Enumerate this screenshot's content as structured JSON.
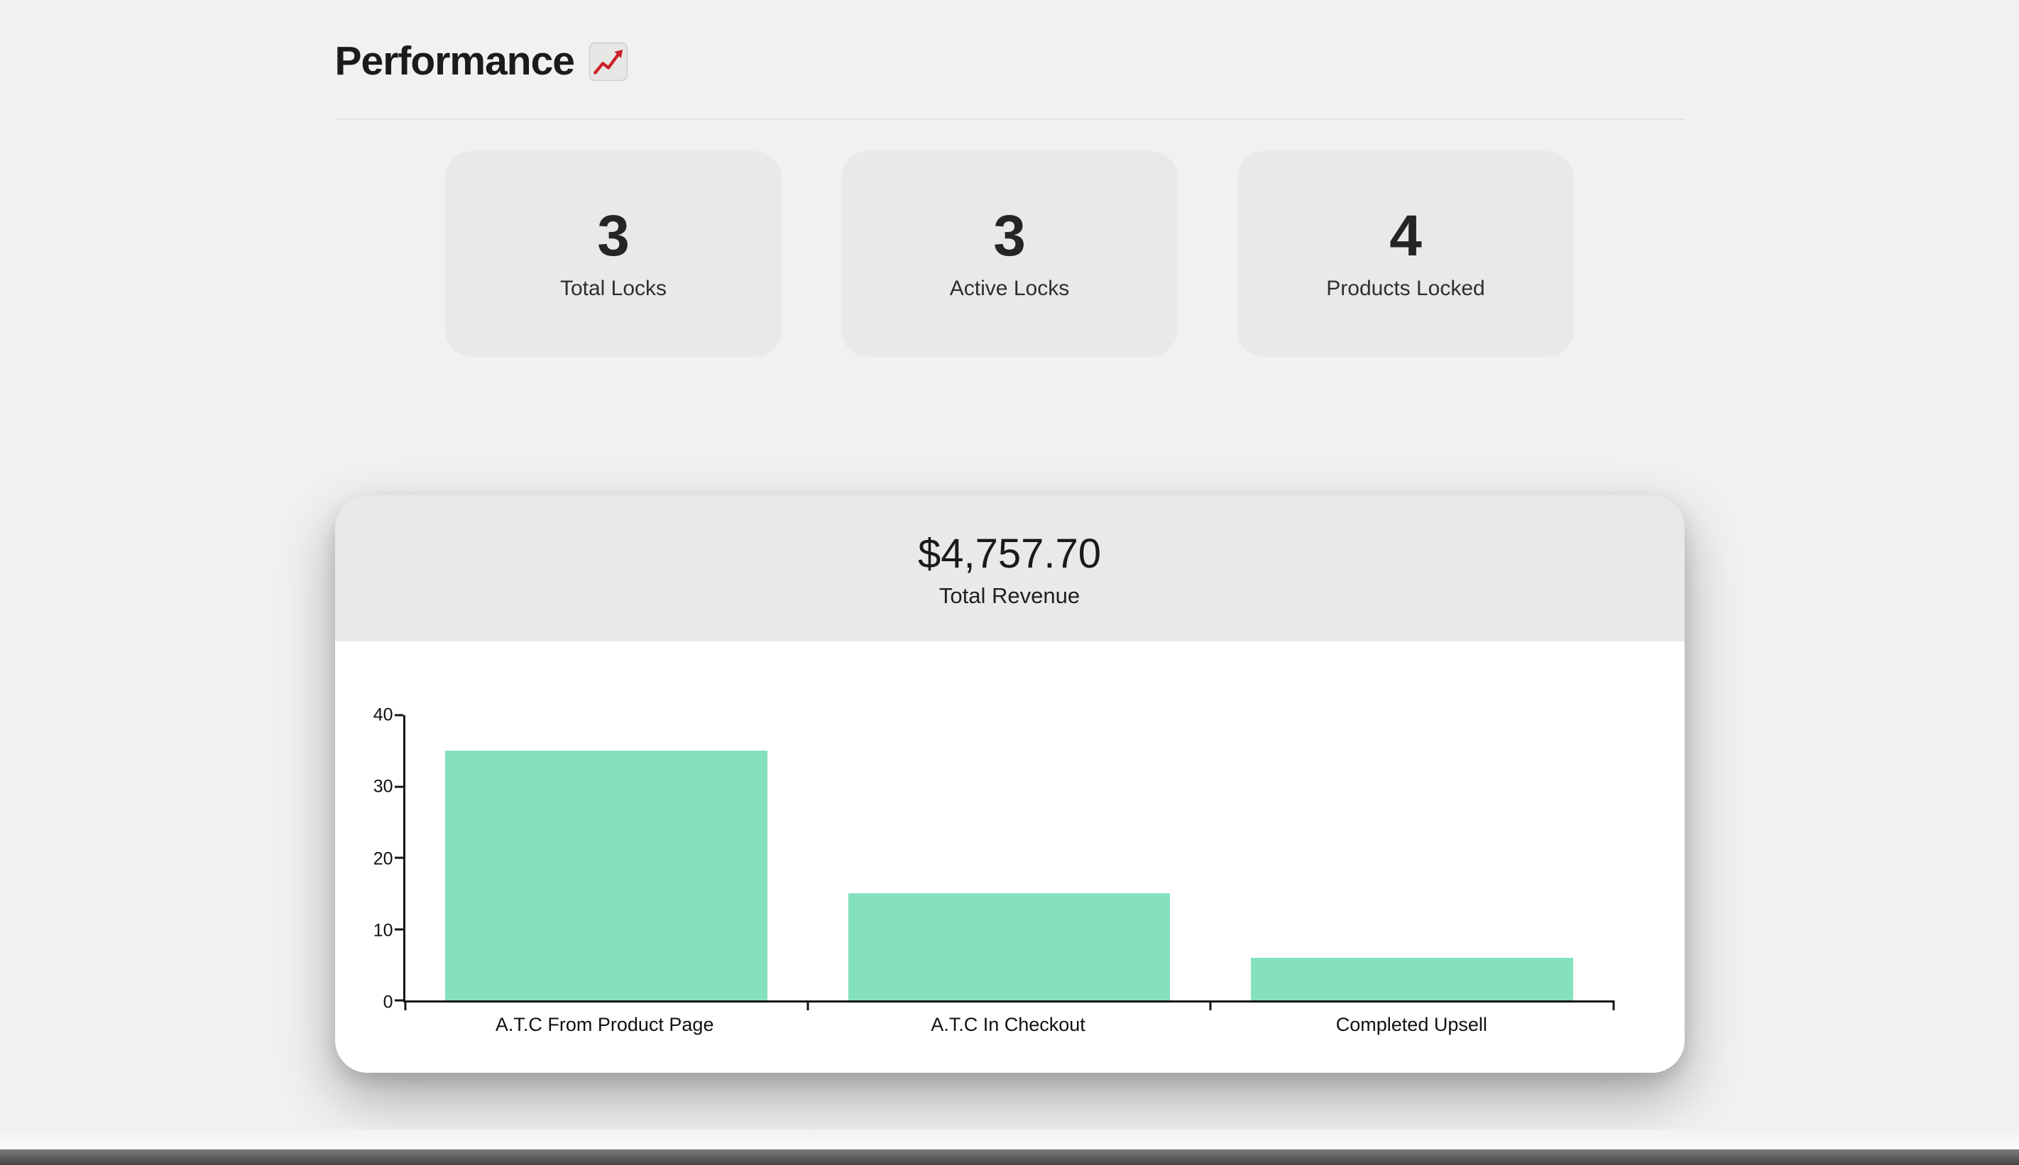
{
  "header": {
    "title": "Performance",
    "emoji": "📈"
  },
  "stats": [
    {
      "value": "3",
      "label": "Total Locks"
    },
    {
      "value": "3",
      "label": "Active Locks"
    },
    {
      "value": "4",
      "label": "Products Locked"
    }
  ],
  "revenue": {
    "amount": "$4,757.70",
    "label": "Total Revenue"
  },
  "chart_data": {
    "type": "bar",
    "categories": [
      "A.T.C From Product Page",
      "A.T.C In Checkout",
      "Completed Upsell"
    ],
    "values": [
      35,
      15,
      6
    ],
    "title": "",
    "xlabel": "",
    "ylabel": "",
    "ylim": [
      0,
      40
    ],
    "yticks": [
      0,
      10,
      20,
      30,
      40
    ],
    "bar_color": "#85e0bd",
    "axis_color": "#151515",
    "grid": false,
    "legend": false
  },
  "colors": {
    "page_background": "#f1f1ef",
    "card_background": "#e9e9e7",
    "panel_background": "#ffffff",
    "bar_fill": "#85e0bd",
    "emoji_red": "#cc2229"
  }
}
